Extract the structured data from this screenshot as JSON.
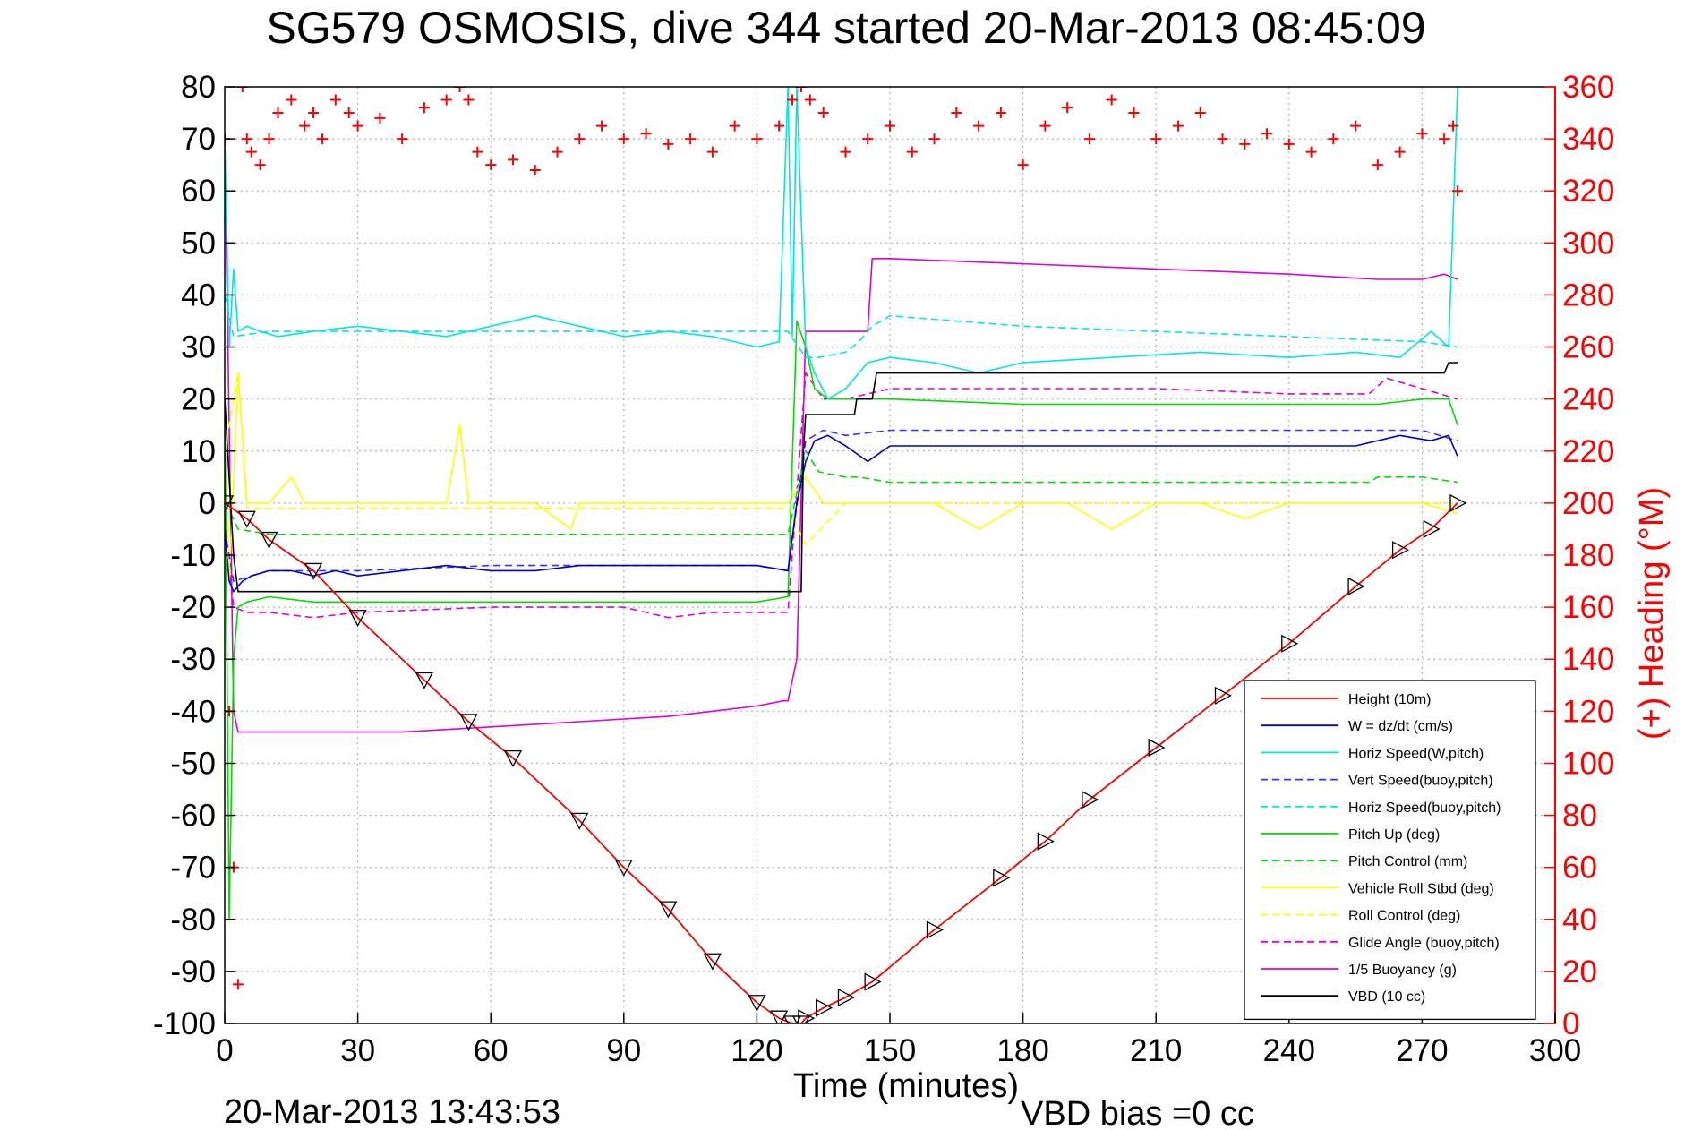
{
  "chart_data": {
    "type": "line",
    "title": "SG579 OSMOSIS, dive 344 started 20-Mar-2013 08:45:09",
    "xlabel": "Time (minutes)",
    "ylabel_right": "(+) Heading (°M)",
    "footer_left": "20-Mar-2013 13:43:53",
    "footer_right": "VBD bias =0 cc",
    "xlim": [
      0,
      300
    ],
    "ylim": [
      -100,
      80
    ],
    "ylim_right": [
      0,
      360
    ],
    "x_ticks": [
      0,
      30,
      60,
      90,
      120,
      150,
      180,
      210,
      240,
      270,
      300
    ],
    "y_ticks": [
      -100,
      -90,
      -80,
      -70,
      -60,
      -50,
      -40,
      -30,
      -20,
      -10,
      0,
      10,
      20,
      30,
      40,
      50,
      60,
      70,
      80
    ],
    "y_ticks_right": [
      0,
      20,
      40,
      60,
      80,
      100,
      120,
      140,
      160,
      180,
      200,
      220,
      240,
      260,
      280,
      300,
      320,
      340,
      360
    ],
    "grid": true,
    "legend_position": "bottom-right",
    "colors": {
      "height": "#ff0000",
      "w": "#0000cc",
      "horiz_speed": "#00e5e5",
      "vert_speed_buoy": "#3333ff",
      "horiz_speed_buoy": "#00e5e5",
      "pitch": "#00dd00",
      "pitch_control": "#00dd00",
      "roll": "#ffff00",
      "roll_control": "#ffff00",
      "glide_angle": "#dd00dd",
      "buoyancy": "#dd00dd",
      "vbd": "#000000",
      "heading": "#ff0000",
      "right_axis": "#ff0000"
    },
    "series": [
      {
        "key": "height",
        "name": "Height (10m)",
        "style": "solid",
        "x": [
          0,
          5,
          10,
          20,
          30,
          45,
          55,
          65,
          80,
          90,
          100,
          110,
          120,
          125,
          128,
          130,
          131,
          135,
          140,
          146,
          160,
          175,
          185,
          195,
          210,
          225,
          240,
          255,
          265,
          272,
          278
        ],
        "y": [
          0,
          -3,
          -7,
          -13,
          -22,
          -34,
          -42,
          -49,
          -61,
          -70,
          -78,
          -88,
          -96,
          -99,
          -100,
          -100,
          -99,
          -97,
          -95,
          -92,
          -82,
          -72,
          -65,
          -57,
          -47,
          -37,
          -27,
          -16,
          -9,
          -5,
          0
        ]
      },
      {
        "key": "w",
        "name": "W = dz/dt (cm/s)",
        "style": "solid",
        "x": [
          0,
          1,
          2,
          4,
          6,
          10,
          15,
          20,
          25,
          30,
          40,
          50,
          60,
          70,
          80,
          90,
          100,
          110,
          120,
          127,
          129,
          131,
          133,
          136,
          140,
          145,
          150,
          160,
          170,
          180,
          200,
          220,
          240,
          255,
          265,
          272,
          276,
          278
        ],
        "y": [
          -5,
          -15,
          -17,
          -15,
          -14,
          -13,
          -13,
          -14,
          -13,
          -14,
          -13,
          -12,
          -13,
          -13,
          -12,
          -12,
          -12,
          -12,
          -12,
          -13,
          0,
          8,
          12,
          13,
          11,
          8,
          11,
          11,
          11,
          11,
          11,
          11,
          11,
          11,
          13,
          12,
          13,
          9
        ]
      },
      {
        "key": "horiz_speed",
        "name": "Horiz Speed(W,pitch)",
        "style": "solid",
        "x": [
          0,
          1,
          2,
          3,
          5,
          8,
          12,
          20,
          30,
          40,
          50,
          60,
          70,
          80,
          90,
          100,
          110,
          120,
          125,
          127,
          128,
          129,
          131,
          133,
          136,
          140,
          145,
          150,
          160,
          170,
          180,
          200,
          220,
          240,
          255,
          265,
          272,
          276,
          278
        ],
        "y": [
          70,
          30,
          45,
          33,
          34,
          33,
          32,
          33,
          34,
          33,
          32,
          34,
          36,
          34,
          32,
          33,
          32,
          30,
          31,
          80,
          32,
          80,
          30,
          25,
          20,
          22,
          27,
          28,
          27,
          25,
          27,
          28,
          29,
          28,
          29,
          28,
          33,
          30,
          80
        ]
      },
      {
        "key": "vert_speed_buoy",
        "name": "Vert Speed(buoy,pitch)",
        "style": "dashed",
        "x": [
          0,
          2,
          10,
          30,
          60,
          90,
          120,
          127,
          131,
          135,
          140,
          150,
          180,
          210,
          240,
          270,
          278
        ],
        "y": [
          -5,
          -15,
          -13,
          -13,
          -12,
          -12,
          -12,
          -13,
          12,
          14,
          13,
          14,
          14,
          14,
          14,
          14,
          12
        ]
      },
      {
        "key": "horiz_speed_buoy",
        "name": "Horiz Speed(buoy,pitch)",
        "style": "dashed",
        "x": [
          0,
          2,
          10,
          30,
          60,
          90,
          120,
          127,
          131,
          134,
          140,
          143,
          146,
          150,
          180,
          210,
          240,
          270,
          278
        ],
        "y": [
          40,
          32,
          33,
          33,
          33,
          33,
          33,
          33,
          28,
          28,
          29,
          31,
          34,
          36,
          34,
          33,
          32,
          31,
          30
        ]
      },
      {
        "key": "pitch",
        "name": "Pitch Up (deg)",
        "style": "solid",
        "x": [
          0,
          1,
          2,
          3,
          5,
          10,
          20,
          30,
          50,
          70,
          90,
          110,
          120,
          127,
          129,
          131,
          133,
          136,
          140,
          145,
          150,
          180,
          210,
          240,
          260,
          270,
          276,
          278
        ],
        "y": [
          20,
          -80,
          -30,
          -20,
          -19,
          -18,
          -19,
          -19,
          -19,
          -19,
          -19,
          -19,
          -19,
          -18,
          35,
          30,
          22,
          20,
          20,
          20,
          20,
          19,
          19,
          19,
          19,
          20,
          20,
          15
        ]
      },
      {
        "key": "pitch_control",
        "name": "Pitch Control (mm)",
        "style": "dashed",
        "x": [
          0,
          2,
          3,
          10,
          30,
          60,
          90,
          120,
          127,
          131,
          134,
          140,
          143,
          150,
          180,
          210,
          240,
          258,
          260,
          270,
          278
        ],
        "y": [
          0,
          -3,
          -5,
          -6,
          -6,
          -6,
          -6,
          -6,
          -6,
          10,
          6,
          5,
          5,
          4,
          4,
          4,
          4,
          4,
          5,
          5,
          4
        ]
      },
      {
        "key": "roll",
        "name": "Vehicle Roll Stbd (deg)",
        "style": "solid",
        "x": [
          0,
          1,
          3,
          5,
          8,
          10,
          15,
          18,
          20,
          25,
          30,
          40,
          50,
          53,
          55,
          57,
          60,
          70,
          78,
          80,
          90,
          100,
          110,
          120,
          127,
          131,
          135,
          140,
          150,
          160,
          170,
          180,
          190,
          200,
          210,
          220,
          230,
          240,
          250,
          260,
          270,
          278
        ],
        "y": [
          10,
          -15,
          25,
          0,
          0,
          0,
          5,
          0,
          0,
          0,
          0,
          0,
          0,
          15,
          0,
          0,
          0,
          0,
          -5,
          0,
          0,
          0,
          0,
          0,
          0,
          5,
          0,
          0,
          0,
          0,
          -5,
          0,
          0,
          -5,
          0,
          0,
          -3,
          0,
          0,
          0,
          0,
          -2
        ]
      },
      {
        "key": "roll_control",
        "name": "Roll Control (deg)",
        "style": "dashed",
        "x": [
          0,
          3,
          5,
          30,
          60,
          90,
          120,
          127,
          131,
          140,
          180,
          220,
          260,
          278
        ],
        "y": [
          10,
          25,
          -1,
          -1,
          -1,
          -1,
          -1,
          -1,
          -8,
          0,
          0,
          0,
          0,
          0
        ]
      },
      {
        "key": "glide_angle",
        "name": "Glide Angle (buoy,pitch)",
        "style": "dashed",
        "x": [
          0,
          2,
          5,
          10,
          20,
          30,
          60,
          90,
          100,
          110,
          120,
          127,
          131,
          135,
          140,
          145,
          150,
          180,
          210,
          240,
          258,
          262,
          270,
          278
        ],
        "y": [
          -5,
          -20,
          -21,
          -21,
          -22,
          -21,
          -20,
          -20,
          -22,
          -21,
          -21,
          -21,
          25,
          20,
          20,
          21,
          22,
          22,
          22,
          21,
          21,
          24,
          22,
          20
        ]
      },
      {
        "key": "buoyancy",
        "name": "1/5 Buoyancy (g)",
        "style": "solid",
        "x": [
          0,
          2,
          3,
          10,
          40,
          60,
          80,
          100,
          110,
          120,
          126,
          127,
          129,
          131,
          137,
          140,
          140.5,
          145,
          146,
          149,
          150,
          180,
          210,
          240,
          260,
          270,
          275,
          278
        ],
        "y": [
          70,
          -40,
          -44,
          -44,
          -44,
          -43,
          -42,
          -41,
          -40,
          -39,
          -38,
          -38,
          -30,
          33,
          33,
          33,
          33,
          33,
          47,
          47,
          47,
          46,
          45,
          44,
          43,
          43,
          44,
          43
        ]
      },
      {
        "key": "vbd",
        "name": "VBD (10 cc)",
        "style": "solid",
        "x": [
          0,
          2,
          3,
          130,
          130.5,
          131,
          137,
          140,
          140.5,
          142,
          142.5,
          146,
          147,
          148,
          150,
          180,
          220,
          260,
          275,
          276,
          278
        ],
        "y": [
          20,
          -10,
          -17,
          -17,
          10,
          17,
          17,
          17,
          17,
          17,
          20,
          20,
          25,
          25,
          25,
          25,
          25,
          25,
          25,
          27,
          27
        ]
      },
      {
        "key": "heading",
        "name": "",
        "style": "markers",
        "axis": "right",
        "x": [
          0,
          1,
          2,
          3,
          4,
          5,
          6,
          8,
          10,
          12,
          15,
          18,
          20,
          22,
          25,
          28,
          30,
          35,
          40,
          45,
          50,
          53,
          55,
          57,
          60,
          65,
          70,
          75,
          80,
          85,
          90,
          95,
          100,
          105,
          110,
          115,
          120,
          125,
          128,
          130,
          132,
          135,
          140,
          145,
          150,
          155,
          160,
          165,
          170,
          175,
          180,
          185,
          190,
          195,
          200,
          205,
          210,
          215,
          220,
          225,
          230,
          235,
          240,
          245,
          250,
          255,
          260,
          265,
          270,
          275,
          277,
          278
        ],
        "y": [
          340,
          120,
          60,
          15,
          360,
          340,
          335,
          330,
          340,
          350,
          355,
          345,
          350,
          340,
          355,
          350,
          345,
          348,
          340,
          352,
          355,
          360,
          355,
          335,
          330,
          332,
          328,
          335,
          340,
          345,
          340,
          342,
          338,
          340,
          335,
          345,
          340,
          345,
          355,
          360,
          355,
          350,
          335,
          340,
          345,
          335,
          340,
          350,
          345,
          350,
          330,
          345,
          352,
          340,
          355,
          350,
          340,
          345,
          350,
          340,
          338,
          342,
          338,
          335,
          340,
          345,
          330,
          335,
          342,
          340,
          345,
          320
        ]
      }
    ]
  }
}
